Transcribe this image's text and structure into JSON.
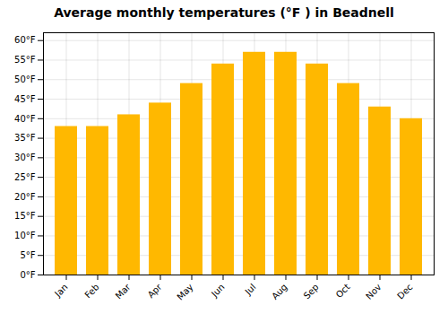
{
  "chart_data": {
    "type": "bar",
    "title": "Average monthly temperatures (°F ) in Beadnell",
    "categories": [
      "Jan",
      "Feb",
      "Mar",
      "Apr",
      "May",
      "Jun",
      "Jul",
      "Aug",
      "Sep",
      "Oct",
      "Nov",
      "Dec"
    ],
    "values": [
      38,
      38,
      41,
      44,
      49,
      54,
      57,
      57,
      54,
      49,
      43,
      40
    ],
    "color": "#FFB800",
    "ylim": [
      0,
      62
    ],
    "yticks": [
      {
        "value": 0,
        "label": "0°F"
      },
      {
        "value": 5,
        "label": "5°F"
      },
      {
        "value": 10,
        "label": "10°F"
      },
      {
        "value": 15,
        "label": "15°F"
      },
      {
        "value": 20,
        "label": "20°F"
      },
      {
        "value": 25,
        "label": "25°F"
      },
      {
        "value": 30,
        "label": "30°F"
      },
      {
        "value": 35,
        "label": "35°F"
      },
      {
        "value": 40,
        "label": "40°F"
      },
      {
        "value": 45,
        "label": "45°F"
      },
      {
        "value": 50,
        "label": "50°F"
      },
      {
        "value": 55,
        "label": "55°F"
      },
      {
        "value": 60,
        "label": "60°F"
      }
    ],
    "grid": true
  }
}
